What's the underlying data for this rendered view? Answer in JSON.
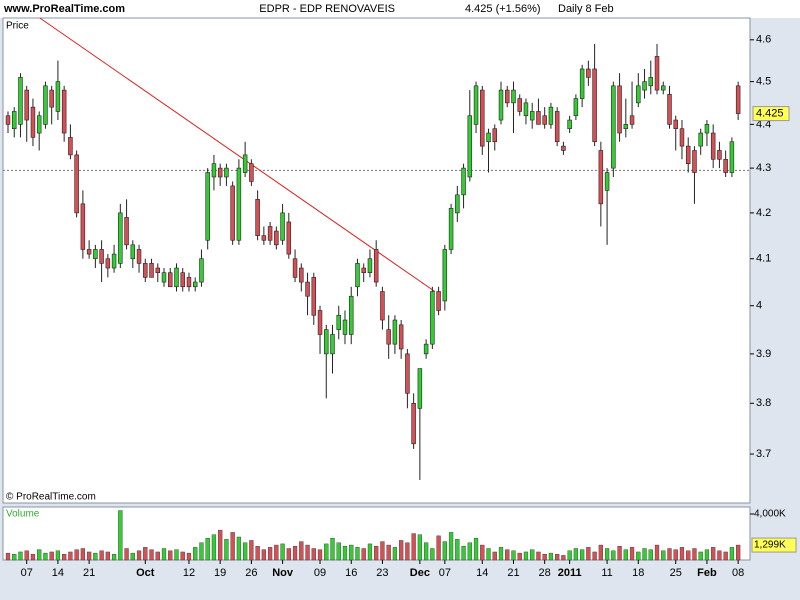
{
  "chart_data": [
    {
      "type": "candlestick",
      "site": "www.ProRealTime.com",
      "title": "EDPR - EDP RENOVAVEIS",
      "quote": "4.425 (+1.56%)",
      "period": "Daily  8 Feb",
      "label": "Price",
      "footer": "© ProRealTime.com",
      "open": [
        4.42,
        4.39,
        4.4,
        4.48,
        4.44,
        4.38,
        4.4,
        4.48,
        4.43,
        4.48,
        4.37,
        4.33,
        4.22,
        4.12,
        4.1,
        4.12,
        4.1,
        4.08,
        4.09,
        4.19,
        4.1,
        4.12,
        4.09,
        4.09,
        4.08,
        4.05,
        4.07,
        4.04,
        4.07,
        4.06,
        4.04,
        4.05,
        4.14,
        4.28,
        4.3,
        4.28,
        4.26,
        4.14,
        4.29,
        4.31,
        4.23,
        4.15,
        4.17,
        4.16,
        4.14,
        4.18,
        4.1,
        4.08,
        4.05,
        4.06,
        3.99,
        3.9,
        3.9,
        3.95,
        3.94,
        3.94,
        4.04,
        4.08,
        4.07,
        4.12,
        4.03,
        3.95,
        3.92,
        3.96,
        3.9,
        3.8,
        3.79,
        3.9,
        3.92,
        4.03,
        4.01,
        4.12,
        4.2,
        4.24,
        4.28,
        4.4,
        4.48,
        4.36,
        4.39,
        4.41,
        4.48,
        4.45,
        4.46,
        4.42,
        4.41,
        4.43,
        4.42,
        4.4,
        4.43,
        4.35,
        4.39,
        4.42,
        4.46,
        4.53,
        4.53,
        4.34,
        4.25,
        4.3,
        4.49,
        4.39,
        4.42,
        4.45,
        4.48,
        4.49,
        4.56,
        4.48,
        4.47,
        4.41,
        4.39,
        4.35,
        4.34,
        4.35,
        4.38,
        4.38,
        4.34,
        4.32,
        4.29,
        4.49
      ],
      "high": [
        4.43,
        4.44,
        4.52,
        4.49,
        4.46,
        4.43,
        4.5,
        4.49,
        4.55,
        4.49,
        4.4,
        4.34,
        4.25,
        4.14,
        4.13,
        4.14,
        4.11,
        4.13,
        4.22,
        4.23,
        4.14,
        4.13,
        4.1,
        4.1,
        4.09,
        4.08,
        4.08,
        4.09,
        4.08,
        4.07,
        4.06,
        4.12,
        4.3,
        4.33,
        4.31,
        4.31,
        4.27,
        4.32,
        4.36,
        4.32,
        4.25,
        4.17,
        4.18,
        4.17,
        4.22,
        4.2,
        4.12,
        4.09,
        4.07,
        4.07,
        4.0,
        3.96,
        3.96,
        4.0,
        3.99,
        4.04,
        4.1,
        4.09,
        4.12,
        4.14,
        4.04,
        3.98,
        3.98,
        3.97,
        3.91,
        3.82,
        3.87,
        3.93,
        4.04,
        4.04,
        4.13,
        4.22,
        4.26,
        4.31,
        4.48,
        4.5,
        4.49,
        4.39,
        4.4,
        4.5,
        4.49,
        4.5,
        4.47,
        4.46,
        4.45,
        4.46,
        4.44,
        4.45,
        4.44,
        4.36,
        4.42,
        4.47,
        4.54,
        4.55,
        4.59,
        4.36,
        4.3,
        4.5,
        4.52,
        4.46,
        4.5,
        4.52,
        4.53,
        4.55,
        4.59,
        4.5,
        4.49,
        4.42,
        4.41,
        4.37,
        4.35,
        4.39,
        4.41,
        4.4,
        4.36,
        4.34,
        4.37,
        4.5
      ],
      "low": [
        4.38,
        4.37,
        4.37,
        4.36,
        4.35,
        4.34,
        4.39,
        4.4,
        4.41,
        4.36,
        4.32,
        4.19,
        4.1,
        4.1,
        4.08,
        4.05,
        4.06,
        4.07,
        4.08,
        4.12,
        4.08,
        4.07,
        4.05,
        4.06,
        4.05,
        4.04,
        4.04,
        4.03,
        4.03,
        4.03,
        4.03,
        4.04,
        4.12,
        4.25,
        4.26,
        4.26,
        4.13,
        4.13,
        4.28,
        4.26,
        4.14,
        4.13,
        4.13,
        4.12,
        4.13,
        4.1,
        4.05,
        4.03,
        3.98,
        3.96,
        3.9,
        3.81,
        3.86,
        3.93,
        3.92,
        3.92,
        4.02,
        4.05,
        4.06,
        4.04,
        3.95,
        3.89,
        3.9,
        3.89,
        3.79,
        3.71,
        3.65,
        3.89,
        3.91,
        3.98,
        3.99,
        4.11,
        4.18,
        4.21,
        4.27,
        4.38,
        4.33,
        4.29,
        4.34,
        4.4,
        4.44,
        4.38,
        4.42,
        4.4,
        4.39,
        4.4,
        4.39,
        4.39,
        4.35,
        4.33,
        4.38,
        4.41,
        4.44,
        4.49,
        4.35,
        4.17,
        4.13,
        4.28,
        4.36,
        4.37,
        4.39,
        4.44,
        4.46,
        4.47,
        4.47,
        4.47,
        4.39,
        4.34,
        4.32,
        4.29,
        4.22,
        4.33,
        4.35,
        4.3,
        4.3,
        4.28,
        4.28,
        4.41
      ],
      "close": [
        4.4,
        4.43,
        4.51,
        4.41,
        4.37,
        4.42,
        4.49,
        4.44,
        4.5,
        4.38,
        4.33,
        4.2,
        4.12,
        4.11,
        4.12,
        4.09,
        4.08,
        4.11,
        4.2,
        4.13,
        4.13,
        4.09,
        4.06,
        4.06,
        4.07,
        4.07,
        4.04,
        4.08,
        4.04,
        4.04,
        4.05,
        4.1,
        4.29,
        4.31,
        4.28,
        4.3,
        4.14,
        4.3,
        4.33,
        4.27,
        4.15,
        4.14,
        4.14,
        4.13,
        4.2,
        4.11,
        4.06,
        4.05,
        4.02,
        3.98,
        3.94,
        3.95,
        3.94,
        3.98,
        3.97,
        4.02,
        4.09,
        4.07,
        4.1,
        4.05,
        3.97,
        3.92,
        3.97,
        3.91,
        3.82,
        3.72,
        3.87,
        3.92,
        4.03,
        3.99,
        4.12,
        4.21,
        4.24,
        4.3,
        4.42,
        4.49,
        4.35,
        4.38,
        4.36,
        4.48,
        4.45,
        4.48,
        4.43,
        4.45,
        4.43,
        4.4,
        4.4,
        4.44,
        4.36,
        4.34,
        4.41,
        4.46,
        4.53,
        4.51,
        4.36,
        4.22,
        4.29,
        4.49,
        4.38,
        4.4,
        4.4,
        4.49,
        4.5,
        4.51,
        4.48,
        4.49,
        4.4,
        4.39,
        4.35,
        4.31,
        4.29,
        4.38,
        4.4,
        4.32,
        4.32,
        4.29,
        4.36,
        4.425
      ],
      "up_color": "#33cc33",
      "down_color": "#d64f55",
      "log_scale": true,
      "xlim": [
        -0.8,
        118.9
      ],
      "ylim": [
        3.606,
        4.653
      ],
      "yticks": [
        3.7,
        3.8,
        3.9,
        4,
        4.1,
        4.2,
        4.3,
        4.4,
        4.5,
        4.6
      ],
      "reference_line": 4.295,
      "trendline": {
        "color": "#e02020",
        "x": [
          5.1,
          68.4
        ],
        "y": [
          4.653,
          4.03
        ]
      },
      "last_value": 4.425
    },
    {
      "type": "bar",
      "label": "Volume",
      "values": [
        600,
        500,
        700,
        800,
        500,
        900,
        600,
        700,
        800,
        500,
        700,
        900,
        1000,
        700,
        600,
        800,
        700,
        500,
        4300,
        1000,
        600,
        800,
        1100,
        900,
        700,
        1000,
        800,
        900,
        700,
        600,
        1100,
        1500,
        1900,
        2200,
        2600,
        1800,
        2400,
        2000,
        1500,
        1700,
        1200,
        900,
        1100,
        1300,
        1400,
        1000,
        1200,
        1600,
        1300,
        1000,
        900,
        1400,
        1900,
        1500,
        1200,
        1300,
        1100,
        1000,
        1400,
        1200,
        1600,
        1300,
        1100,
        1700,
        1500,
        2300,
        2200,
        1500,
        1000,
        2100,
        1600,
        2400,
        1800,
        1200,
        1500,
        1900,
        1300,
        1000,
        700,
        1100,
        900,
        800,
        600,
        700,
        900,
        700,
        500,
        600,
        500,
        400,
        800,
        1000,
        900,
        1100,
        700,
        1300,
        1000,
        800,
        1200,
        900,
        1100,
        700,
        1000,
        900,
        1300,
        800,
        1000,
        900,
        1100,
        800,
        1000,
        700,
        900,
        1100,
        800,
        700,
        1100,
        1299
      ],
      "up_color": "#33cc33",
      "down_color": "#d64f55",
      "xlim": [
        -0.8,
        118.9
      ],
      "ylim": [
        0,
        4609
      ],
      "yticks": [
        {
          "value": 4000,
          "label": "4,000K"
        }
      ],
      "last_value": {
        "value": 1299,
        "label": "1,299K"
      },
      "xticks": [
        {
          "value": 3,
          "label": "07"
        },
        {
          "value": 8,
          "label": "14"
        },
        {
          "value": 13,
          "label": "21"
        },
        {
          "value": 22,
          "label": "Oct"
        },
        {
          "value": 29,
          "label": "12"
        },
        {
          "value": 34,
          "label": "19"
        },
        {
          "value": 39,
          "label": "26"
        },
        {
          "value": 44,
          "label": "Nov"
        },
        {
          "value": 50,
          "label": "09"
        },
        {
          "value": 55,
          "label": "16"
        },
        {
          "value": 60,
          "label": "23"
        },
        {
          "value": 66,
          "label": "Dec"
        },
        {
          "value": 70,
          "label": "07"
        },
        {
          "value": 76,
          "label": "14"
        },
        {
          "value": 81,
          "label": "21"
        },
        {
          "value": 86,
          "label": "28"
        },
        {
          "value": 90,
          "label": "2011"
        },
        {
          "value": 96,
          "label": "11"
        },
        {
          "value": 101,
          "label": "18"
        },
        {
          "value": 107,
          "label": "25"
        },
        {
          "value": 112,
          "label": "Feb"
        },
        {
          "value": 117,
          "label": "08"
        }
      ]
    }
  ]
}
